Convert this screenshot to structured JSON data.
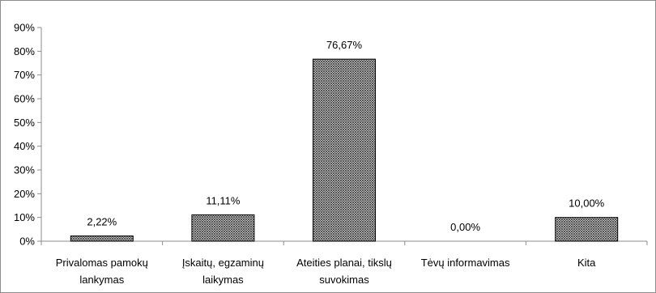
{
  "chart_data": {
    "type": "bar",
    "title": "",
    "xlabel": "",
    "ylabel": "",
    "ylim": [
      0,
      90
    ],
    "yticks": [
      "0%",
      "10%",
      "20%",
      "30%",
      "40%",
      "50%",
      "60%",
      "70%",
      "80%",
      "90%"
    ],
    "categories": [
      [
        "Privalomas pamokų",
        "lankymas"
      ],
      [
        "Įskaitų, egzaminų",
        "laikymas"
      ],
      [
        "Ateities planai, tikslų",
        "suvokimas"
      ],
      [
        "Tėvų informavimas"
      ],
      [
        "Kita"
      ]
    ],
    "values": [
      2.22,
      11.11,
      76.67,
      0.0,
      10.0
    ],
    "data_labels": [
      "2,22%",
      "11,11%",
      "76,67%",
      "0,00%",
      "10,00%"
    ],
    "bar_fill": "crosshatch",
    "bar_color": "#555555",
    "grid": false,
    "legend": "none"
  }
}
